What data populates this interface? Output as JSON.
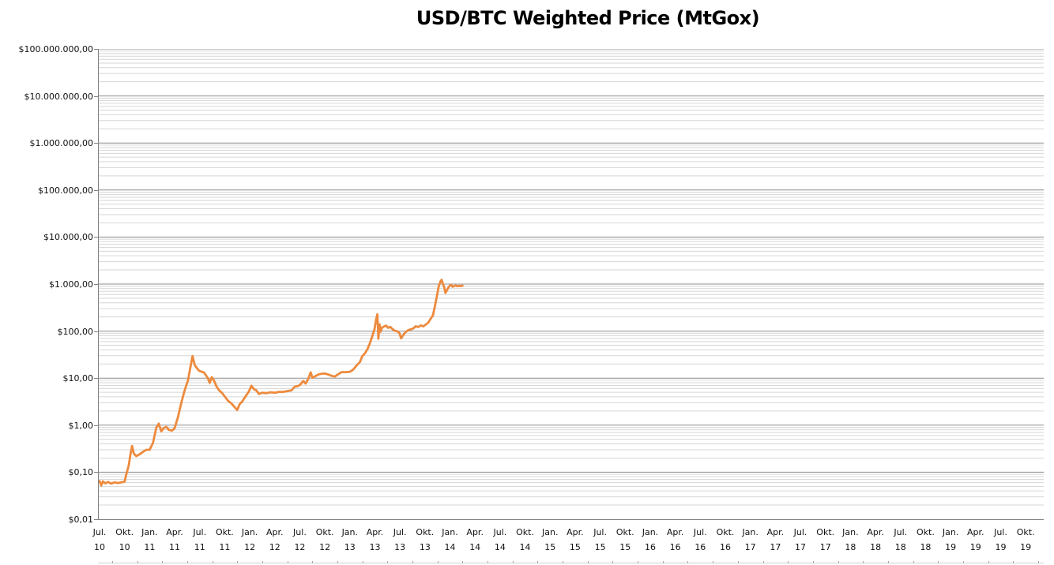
{
  "colors": {
    "line": "#ED8A3D",
    "grid_major": "#8C8C8C",
    "grid_minor": "#D6D6D6",
    "axis": "#808080",
    "text": "#111111"
  },
  "chart_data": {
    "type": "line",
    "title": "USD/BTC Weighted Price (MtGox)",
    "y_scale": "log",
    "ylim": [
      0.01,
      100000000
    ],
    "grid": "log minor gridlines on, quarterly category labels",
    "legend": "none",
    "y_tick_labels": [
      "$100.000.000,00",
      "$10.000.000,00",
      "$1.000.000,00",
      "$100.000,00",
      "$10.000,00",
      "$1.000,00",
      "$100,00",
      "$10,00",
      "$1,00",
      "$0,10",
      "$0,01"
    ],
    "x_tick_labels": [
      {
        "month": "Jul.",
        "year": "10"
      },
      {
        "month": "Okt.",
        "year": "10"
      },
      {
        "month": "Jan.",
        "year": "11"
      },
      {
        "month": "Apr.",
        "year": "11"
      },
      {
        "month": "Jul.",
        "year": "11"
      },
      {
        "month": "Okt.",
        "year": "11"
      },
      {
        "month": "Jan.",
        "year": "12"
      },
      {
        "month": "Apr.",
        "year": "12"
      },
      {
        "month": "Jul.",
        "year": "12"
      },
      {
        "month": "Okt.",
        "year": "12"
      },
      {
        "month": "Jan.",
        "year": "13"
      },
      {
        "month": "Apr.",
        "year": "13"
      },
      {
        "month": "Jul.",
        "year": "13"
      },
      {
        "month": "Okt.",
        "year": "13"
      },
      {
        "month": "Jan.",
        "year": "14"
      },
      {
        "month": "Apr.",
        "year": "14"
      },
      {
        "month": "Jul.",
        "year": "14"
      },
      {
        "month": "Okt.",
        "year": "14"
      },
      {
        "month": "Jan.",
        "year": "15"
      },
      {
        "month": "Apr.",
        "year": "15"
      },
      {
        "month": "Jul.",
        "year": "15"
      },
      {
        "month": "Okt.",
        "year": "15"
      },
      {
        "month": "Jan.",
        "year": "16"
      },
      {
        "month": "Apr.",
        "year": "16"
      },
      {
        "month": "Jul.",
        "year": "16"
      },
      {
        "month": "Okt.",
        "year": "16"
      },
      {
        "month": "Jan.",
        "year": "17"
      },
      {
        "month": "Apr.",
        "year": "17"
      },
      {
        "month": "Jul.",
        "year": "17"
      },
      {
        "month": "Okt.",
        "year": "17"
      },
      {
        "month": "Jan.",
        "year": "18"
      },
      {
        "month": "Apr.",
        "year": "18"
      },
      {
        "month": "Jul.",
        "year": "18"
      },
      {
        "month": "Okt.",
        "year": "18"
      },
      {
        "month": "Jan.",
        "year": "19"
      },
      {
        "month": "Apr.",
        "year": "19"
      },
      {
        "month": "Jul.",
        "year": "19"
      },
      {
        "month": "Okt.",
        "year": "19"
      }
    ],
    "x_unit": "months since Jul 2010 (0 = Jul. 10); labels every 3 months; data ends ~Feb 2014",
    "series": [
      {
        "name": "USD/BTC weighted price",
        "color": "#ED8A3D",
        "points_t_price": [
          [
            -0.4,
            0.06
          ],
          [
            0,
            0.065
          ],
          [
            0.2,
            0.052
          ],
          [
            0.4,
            0.064
          ],
          [
            0.7,
            0.058
          ],
          [
            1,
            0.062
          ],
          [
            1.4,
            0.057
          ],
          [
            1.8,
            0.061
          ],
          [
            2.2,
            0.059
          ],
          [
            2.6,
            0.061
          ],
          [
            3,
            0.063
          ],
          [
            3.2,
            0.09
          ],
          [
            3.5,
            0.14
          ],
          [
            3.7,
            0.24
          ],
          [
            3.9,
            0.36
          ],
          [
            4.1,
            0.25
          ],
          [
            4.4,
            0.22
          ],
          [
            4.8,
            0.24
          ],
          [
            5.2,
            0.27
          ],
          [
            5.6,
            0.3
          ],
          [
            6,
            0.3
          ],
          [
            6.4,
            0.42
          ],
          [
            6.8,
            0.88
          ],
          [
            7.1,
            1.08
          ],
          [
            7.4,
            0.74
          ],
          [
            7.7,
            0.87
          ],
          [
            8,
            0.92
          ],
          [
            8.3,
            0.8
          ],
          [
            8.7,
            0.77
          ],
          [
            9,
            0.86
          ],
          [
            9.4,
            1.5
          ],
          [
            9.8,
            3
          ],
          [
            10.2,
            5.5
          ],
          [
            10.6,
            8.9
          ],
          [
            10.9,
            17.5
          ],
          [
            11.15,
            29.5
          ],
          [
            11.4,
            19
          ],
          [
            11.6,
            17
          ],
          [
            11.9,
            14.5
          ],
          [
            12.2,
            13.8
          ],
          [
            12.5,
            13.2
          ],
          [
            12.8,
            11.2
          ],
          [
            13,
            9.8
          ],
          [
            13.2,
            7.9
          ],
          [
            13.45,
            10.5
          ],
          [
            13.7,
            9
          ],
          [
            14,
            6.8
          ],
          [
            14.3,
            5.6
          ],
          [
            14.7,
            4.8
          ],
          [
            15,
            4.1
          ],
          [
            15.4,
            3.3
          ],
          [
            15.8,
            2.9
          ],
          [
            16.2,
            2.4
          ],
          [
            16.5,
            2.1
          ],
          [
            16.8,
            2.8
          ],
          [
            17.1,
            3.2
          ],
          [
            17.5,
            4.1
          ],
          [
            17.9,
            5.2
          ],
          [
            18.2,
            6.9
          ],
          [
            18.5,
            5.8
          ],
          [
            18.8,
            5.5
          ],
          [
            19.1,
            4.6
          ],
          [
            19.5,
            4.9
          ],
          [
            20,
            4.8
          ],
          [
            20.5,
            5
          ],
          [
            21,
            4.9
          ],
          [
            21.5,
            5.1
          ],
          [
            22,
            5.1
          ],
          [
            22.5,
            5.3
          ],
          [
            23,
            5.5
          ],
          [
            23.4,
            6.6
          ],
          [
            23.8,
            6.8
          ],
          [
            24.1,
            7.4
          ],
          [
            24.4,
            8.7
          ],
          [
            24.7,
            7.7
          ],
          [
            25,
            9.5
          ],
          [
            25.3,
            13.3
          ],
          [
            25.5,
            10.2
          ],
          [
            25.8,
            10.8
          ],
          [
            26.2,
            11.9
          ],
          [
            26.6,
            12.4
          ],
          [
            27,
            12.5
          ],
          [
            27.4,
            12
          ],
          [
            27.8,
            11.2
          ],
          [
            28.2,
            10.8
          ],
          [
            28.6,
            12.1
          ],
          [
            29,
            13.4
          ],
          [
            29.5,
            13.4
          ],
          [
            30,
            13.6
          ],
          [
            30.4,
            15.2
          ],
          [
            30.8,
            18.5
          ],
          [
            31.2,
            22
          ],
          [
            31.5,
            29.5
          ],
          [
            31.8,
            33.5
          ],
          [
            32.1,
            41
          ],
          [
            32.4,
            55
          ],
          [
            32.7,
            79
          ],
          [
            32.95,
            110
          ],
          [
            33.15,
            180
          ],
          [
            33.3,
            228
          ],
          [
            33.42,
            69
          ],
          [
            33.55,
            140
          ],
          [
            33.7,
            97
          ],
          [
            33.85,
            119
          ],
          [
            34.1,
            125
          ],
          [
            34.35,
            131
          ],
          [
            34.6,
            117
          ],
          [
            34.85,
            123
          ],
          [
            35.1,
            110
          ],
          [
            35.4,
            102
          ],
          [
            35.7,
            99
          ],
          [
            35.95,
            90
          ],
          [
            36.15,
            70
          ],
          [
            36.4,
            83
          ],
          [
            36.7,
            96
          ],
          [
            37,
            105
          ],
          [
            37.3,
            109
          ],
          [
            37.6,
            114
          ],
          [
            37.9,
            127
          ],
          [
            38.2,
            122
          ],
          [
            38.5,
            132
          ],
          [
            38.8,
            126
          ],
          [
            39.1,
            138
          ],
          [
            39.4,
            152
          ],
          [
            39.7,
            185
          ],
          [
            39.95,
            215
          ],
          [
            40.2,
            340
          ],
          [
            40.45,
            580
          ],
          [
            40.65,
            900
          ],
          [
            40.85,
            1130
          ],
          [
            41,
            1230
          ],
          [
            41.15,
            1010
          ],
          [
            41.3,
            880
          ],
          [
            41.45,
            650
          ],
          [
            41.6,
            720
          ],
          [
            41.8,
            840
          ],
          [
            42,
            930
          ],
          [
            42.15,
            960
          ],
          [
            42.3,
            880
          ],
          [
            42.5,
            905
          ],
          [
            42.7,
            930
          ],
          [
            42.9,
            900
          ],
          [
            43.1,
            915
          ],
          [
            43.3,
            905
          ],
          [
            43.5,
            925
          ]
        ]
      }
    ]
  }
}
